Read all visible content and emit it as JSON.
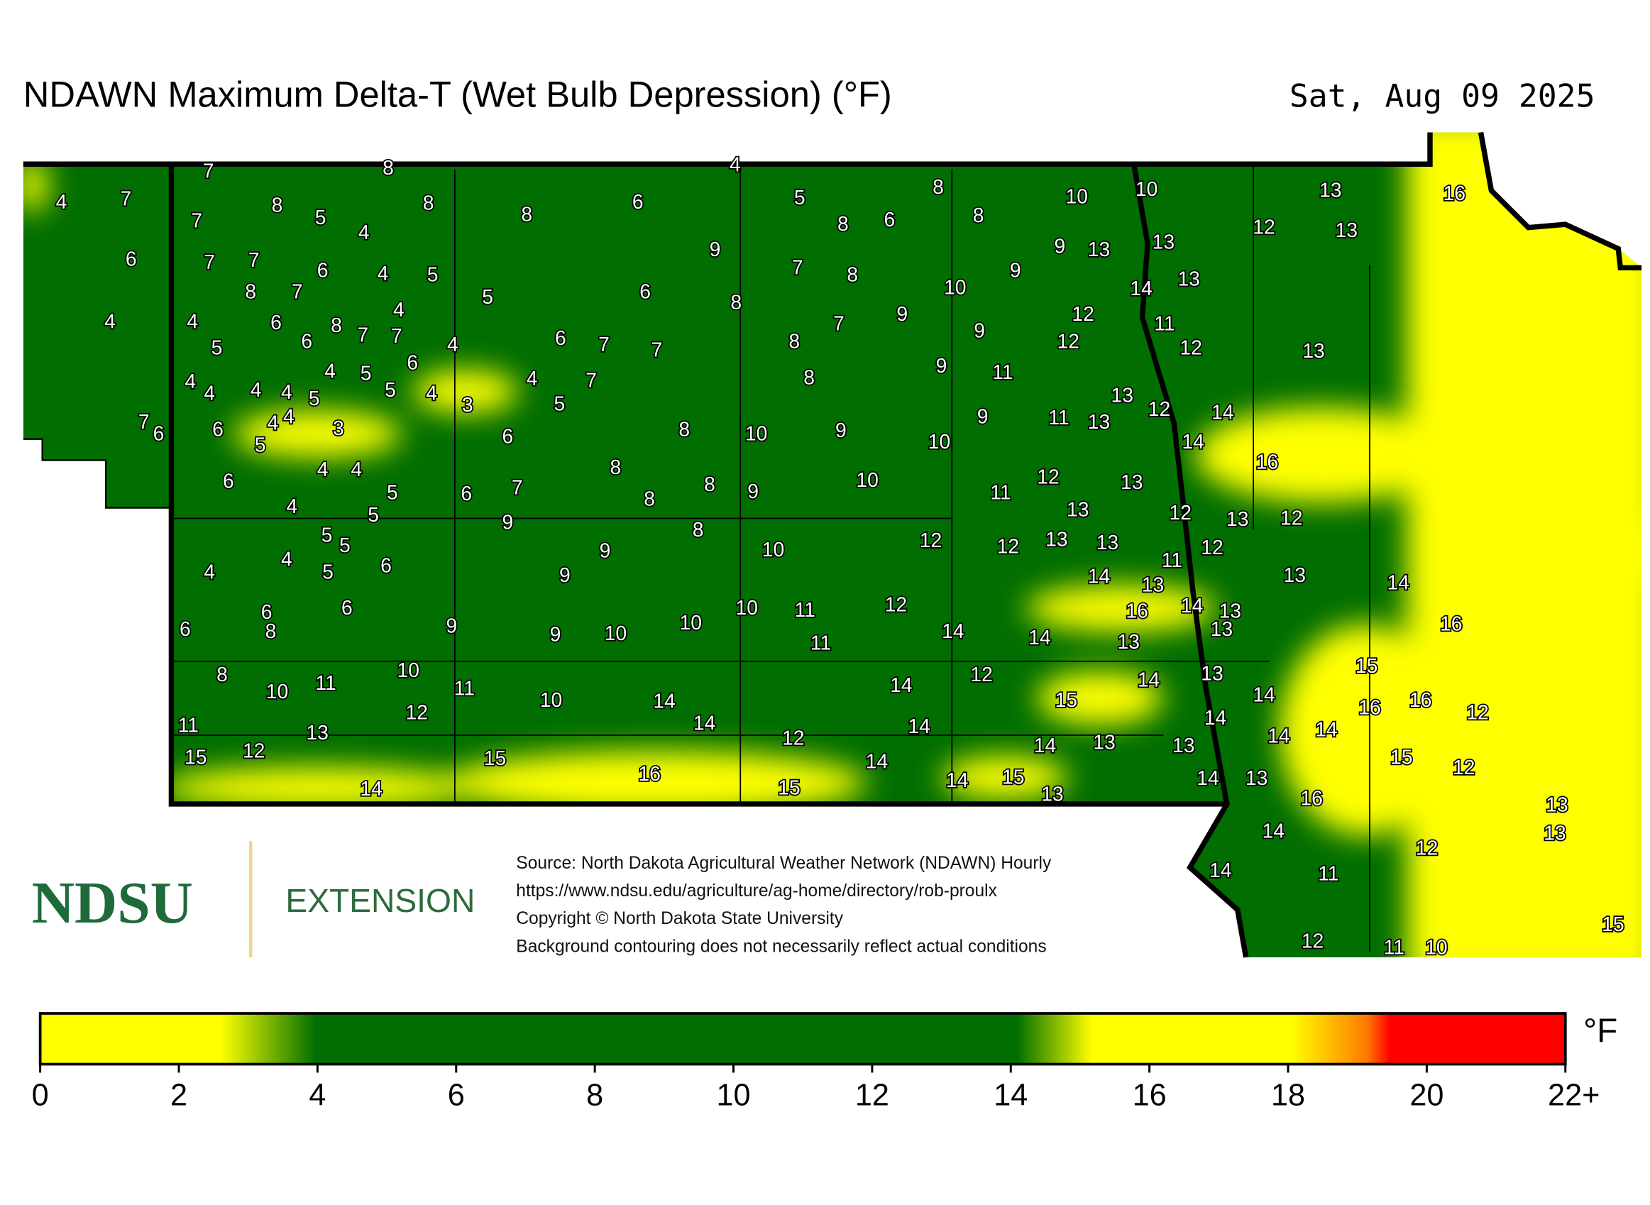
{
  "title": "NDAWN Maximum Delta-T (Wet Bulb Depression) (°F)",
  "date": "Sat, Aug 09 2025",
  "logo": {
    "name": "NDSU",
    "unit": "EXTENSION"
  },
  "source_lines": [
    "Source: North Dakota Agricultural Weather Network (NDAWN) Hourly",
    "https://www.ndsu.edu/agriculture/ag-home/directory/rob-proulx",
    "Copyright © North Dakota State University",
    "Background contouring does not necessarily reflect actual conditions"
  ],
  "colorbar": {
    "unit": "°F",
    "lim": [
      0,
      22
    ],
    "ticks": [
      0,
      2,
      4,
      6,
      8,
      10,
      12,
      14,
      16,
      18,
      20,
      {
        "value": 22,
        "label": "22+"
      }
    ]
  },
  "stations": [
    7,
    8,
    4,
    4,
    7,
    8,
    5,
    7,
    8,
    4,
    8,
    6,
    5,
    8,
    8,
    6,
    8,
    10,
    10,
    13,
    16,
    12,
    13,
    6,
    7,
    7,
    6,
    4,
    5,
    8,
    7,
    5,
    9,
    6,
    7,
    8,
    8,
    9,
    13,
    13,
    9,
    10,
    14,
    13,
    4,
    4,
    6,
    8,
    4,
    5,
    6,
    7,
    7,
    4,
    6,
    7,
    7,
    7,
    9,
    8,
    9,
    12,
    11,
    12,
    12,
    13,
    6,
    4,
    5,
    4,
    4,
    4,
    4,
    5,
    5,
    4,
    3,
    4,
    7,
    5,
    8,
    9,
    11,
    13,
    12,
    14,
    7,
    6,
    6,
    4,
    4,
    5,
    3,
    6,
    8,
    10,
    9,
    10,
    9,
    11,
    13,
    14,
    16,
    4,
    4,
    6,
    8,
    5,
    6,
    7,
    8,
    8,
    9,
    10,
    12,
    11,
    13,
    4,
    5,
    9,
    8,
    13,
    12,
    13,
    12,
    5,
    5,
    4,
    6,
    4,
    5,
    9,
    10,
    12,
    12,
    13,
    13,
    11,
    12,
    9,
    14,
    13,
    13,
    14,
    6,
    6,
    8,
    6,
    9,
    9,
    10,
    10,
    10,
    11,
    12,
    11,
    14,
    14,
    13,
    16,
    14,
    13,
    13,
    16,
    8,
    10,
    11,
    10,
    11,
    12,
    10,
    14,
    14,
    12,
    15,
    14,
    13,
    15,
    14,
    16,
    16,
    12,
    11,
    13,
    14,
    12,
    14,
    14,
    14,
    14,
    15,
    12,
    15,
    14,
    14,
    13,
    13,
    15,
    12,
    14,
    16,
    15,
    14,
    15,
    13,
    14,
    13,
    16,
    13,
    14,
    13,
    12,
    14,
    11,
    15,
    12,
    11,
    10
  ]
}
